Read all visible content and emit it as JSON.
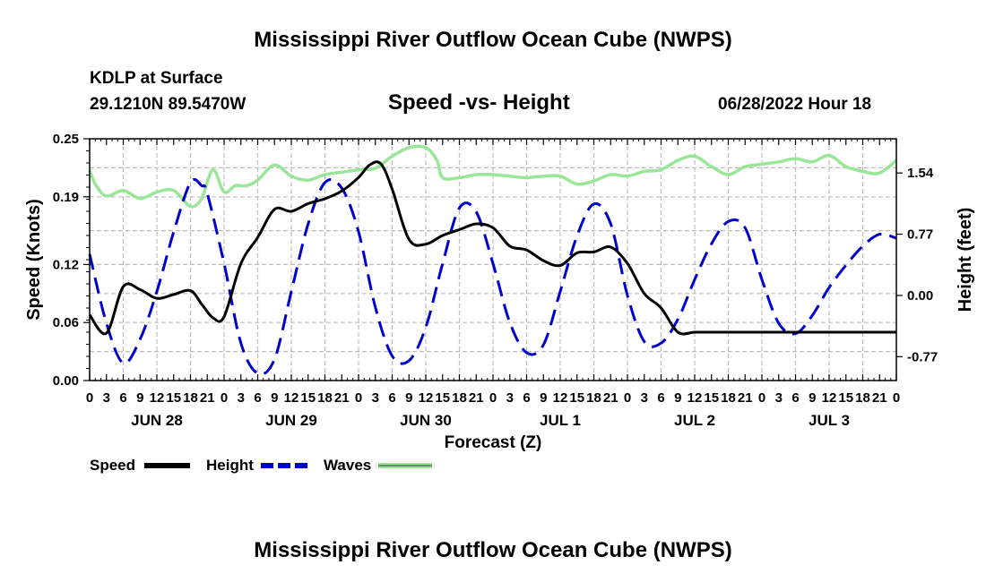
{
  "page": {
    "title": "Mississippi River Outflow Ocean Cube (NWPS)",
    "title_repeat": "Mississippi River Outflow Ocean Cube (NWPS)",
    "station": "KDLP at Surface",
    "coords": "29.1210N  89.5470W",
    "date": "06/28/2022 Hour 18"
  },
  "chart_data": {
    "type": "line",
    "title": "Speed -vs- Height",
    "xlabel": "Forecast (Z)",
    "ylabel": "Speed (Knots)",
    "y2label": "Height (feet)",
    "xlim": [
      0,
      144
    ],
    "ylim": [
      0,
      0.25
    ],
    "y2lim": [
      -1.07,
      1.97
    ],
    "yticks": [
      0.0,
      0.06,
      0.12,
      0.19,
      0.25
    ],
    "yticklabels": [
      "0.00",
      "0.06",
      "0.12",
      "0.19",
      "0.25"
    ],
    "y2ticks": [
      -0.77,
      0.0,
      0.77,
      1.54
    ],
    "y2ticklabels": [
      "-0.77",
      "0.00",
      "0.77",
      "1.54"
    ],
    "hour_labels": [
      "0",
      "3",
      "6",
      "9",
      "12",
      "15",
      "18",
      "21",
      "0",
      "3",
      "6",
      "9",
      "12",
      "15",
      "18",
      "21",
      "0",
      "3",
      "6",
      "9",
      "12",
      "15",
      "18",
      "21",
      "0",
      "3",
      "6",
      "9",
      "12",
      "15",
      "18",
      "21",
      "0",
      "3",
      "6",
      "9",
      "12",
      "15",
      "18",
      "21",
      "0",
      "3",
      "6",
      "9",
      "12",
      "15",
      "18",
      "21",
      "0"
    ],
    "day_labels": [
      "JUN 28",
      "JUN 29",
      "JUN 30",
      "JUL 1",
      "JUL 2",
      "JUL 3"
    ],
    "grid": true,
    "colors": {
      "speed": "#000000",
      "height": "#0000cc",
      "waves": "#99e699"
    },
    "legend": [
      {
        "name": "Speed",
        "style": "solid",
        "color": "#000000"
      },
      {
        "name": "Height",
        "style": "dashed",
        "color": "#0000cc"
      },
      {
        "name": "Waves",
        "style": "solid",
        "color": "#99e699"
      }
    ],
    "series": [
      {
        "name": "Speed",
        "axis": "left",
        "x": [
          0,
          3,
          6,
          9,
          12,
          15,
          18,
          20,
          22,
          24,
          27,
          30,
          33,
          36,
          39,
          42,
          45,
          48,
          50,
          52,
          54,
          57,
          60,
          63,
          66,
          69,
          72,
          75,
          78,
          81,
          84,
          87,
          90,
          93,
          96,
          99,
          102,
          105,
          108,
          111,
          114,
          117,
          120,
          144
        ],
        "y": [
          0.068,
          0.049,
          0.097,
          0.094,
          0.085,
          0.089,
          0.093,
          0.079,
          0.065,
          0.066,
          0.121,
          0.148,
          0.177,
          0.175,
          0.183,
          0.188,
          0.196,
          0.21,
          0.223,
          0.224,
          0.198,
          0.146,
          0.141,
          0.15,
          0.156,
          0.162,
          0.158,
          0.139,
          0.135,
          0.124,
          0.119,
          0.132,
          0.133,
          0.138,
          0.121,
          0.09,
          0.075,
          0.05,
          0.05,
          0.05,
          0.05,
          0.05,
          0.05,
          0.05
        ]
      },
      {
        "name": "Height",
        "axis": "right",
        "x": [
          0,
          3,
          6,
          9,
          12,
          15,
          18,
          20,
          21,
          24,
          27,
          30,
          33,
          36,
          39,
          42,
          45,
          48,
          51,
          54,
          57,
          60,
          63,
          66,
          69,
          72,
          75,
          78,
          81,
          84,
          87,
          90,
          93,
          96,
          99,
          102,
          105,
          108,
          111,
          114,
          117,
          120,
          123,
          126,
          129,
          132,
          135,
          138,
          141,
          144
        ],
        "y": [
          0.52,
          -0.35,
          -0.85,
          -0.55,
          0.05,
          0.8,
          1.42,
          1.38,
          1.28,
          0.4,
          -0.6,
          -0.98,
          -0.8,
          0.05,
          0.9,
          1.42,
          1.35,
          0.8,
          -0.15,
          -0.76,
          -0.82,
          -0.4,
          0.4,
          1.1,
          1.05,
          0.4,
          -0.34,
          -0.72,
          -0.62,
          0.05,
          0.75,
          1.15,
          0.9,
          0.0,
          -0.58,
          -0.6,
          -0.3,
          0.2,
          0.65,
          0.93,
          0.85,
          0.2,
          -0.35,
          -0.48,
          -0.25,
          0.1,
          0.38,
          0.62,
          0.77,
          0.72
        ]
      },
      {
        "name": "Waves",
        "axis": "right",
        "x": [
          0,
          1,
          3,
          6,
          9,
          12,
          15,
          18,
          20,
          22,
          24,
          26,
          28,
          30,
          33,
          36,
          39,
          42,
          45,
          48,
          51,
          54,
          57,
          60,
          62,
          63,
          66,
          69,
          72,
          75,
          78,
          81,
          84,
          87,
          90,
          93,
          96,
          99,
          102,
          105,
          108,
          111,
          114,
          117,
          120,
          123,
          126,
          129,
          132,
          135,
          138,
          141,
          144
        ],
        "y": [
          1.58,
          1.4,
          1.25,
          1.32,
          1.22,
          1.3,
          1.32,
          1.12,
          1.22,
          1.58,
          1.3,
          1.38,
          1.38,
          1.45,
          1.64,
          1.5,
          1.45,
          1.52,
          1.55,
          1.58,
          1.6,
          1.75,
          1.86,
          1.86,
          1.7,
          1.48,
          1.48,
          1.52,
          1.52,
          1.5,
          1.48,
          1.5,
          1.5,
          1.4,
          1.44,
          1.52,
          1.5,
          1.56,
          1.58,
          1.7,
          1.75,
          1.62,
          1.52,
          1.62,
          1.65,
          1.68,
          1.72,
          1.68,
          1.76,
          1.62,
          1.56,
          1.54,
          1.7
        ]
      }
    ]
  }
}
